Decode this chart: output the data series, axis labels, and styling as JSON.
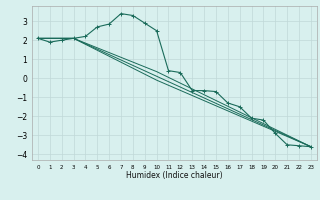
{
  "title": "",
  "xlabel": "Humidex (Indice chaleur)",
  "bg_color": "#d8f0ee",
  "grid_color": "#c0d8d8",
  "line_color": "#1a6b5a",
  "xlim": [
    -0.5,
    23.5
  ],
  "ylim": [
    -4.3,
    3.8
  ],
  "yticks": [
    -4,
    -3,
    -2,
    -1,
    0,
    1,
    2,
    3
  ],
  "xticks": [
    0,
    1,
    2,
    3,
    4,
    5,
    6,
    7,
    8,
    9,
    10,
    11,
    12,
    13,
    14,
    15,
    16,
    17,
    18,
    19,
    20,
    21,
    22,
    23
  ],
  "line1_x": [
    0,
    1,
    2,
    3,
    4,
    5,
    6,
    7,
    8,
    9,
    10,
    11,
    12,
    13,
    14,
    15,
    16,
    17,
    18,
    19,
    20,
    21,
    22,
    23
  ],
  "line1_y": [
    2.1,
    1.9,
    2.0,
    2.1,
    2.2,
    2.7,
    2.85,
    3.4,
    3.3,
    2.9,
    2.5,
    0.4,
    0.3,
    -0.65,
    -0.65,
    -0.7,
    -1.3,
    -1.5,
    -2.1,
    -2.2,
    -2.9,
    -3.5,
    -3.55,
    -3.6
  ],
  "line2_x": [
    0,
    3,
    10,
    23
  ],
  "line2_y": [
    2.1,
    2.1,
    0.35,
    -3.6
  ],
  "line3_x": [
    0,
    3,
    10,
    23
  ],
  "line3_y": [
    2.1,
    2.1,
    -0.1,
    -3.6
  ],
  "line4_x": [
    0,
    3,
    23
  ],
  "line4_y": [
    2.1,
    2.1,
    -3.6
  ],
  "xlabel_fontsize": 5.5,
  "ytick_fontsize": 5.5,
  "xtick_fontsize": 4.0
}
